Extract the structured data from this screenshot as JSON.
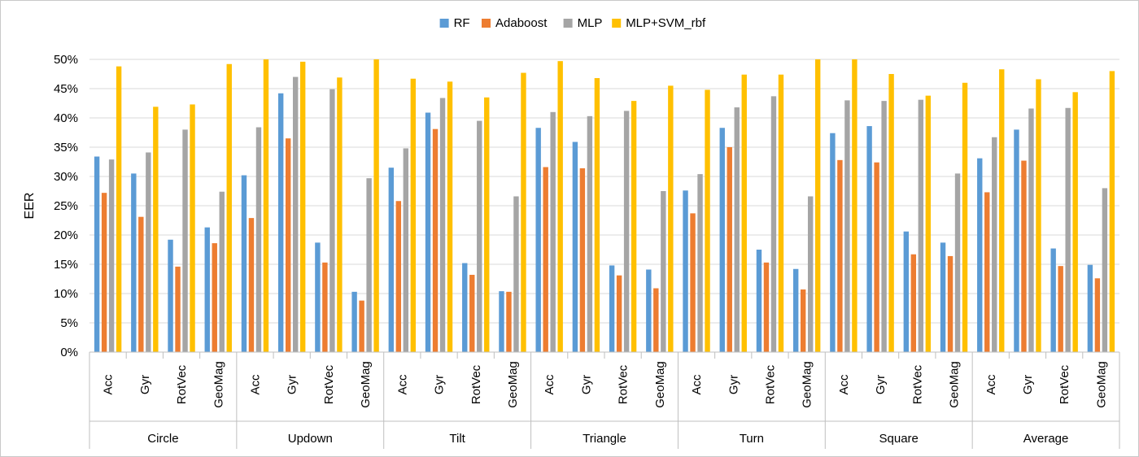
{
  "chart_data": {
    "type": "bar",
    "title": "",
    "ylabel": "EER",
    "xlabel": "",
    "ylim": [
      0,
      0.5
    ],
    "y_ticks": [
      "0%",
      "5%",
      "10%",
      "15%",
      "20%",
      "25%",
      "30%",
      "35%",
      "40%",
      "45%",
      "50%"
    ],
    "legend_position": "top-center",
    "grid": true,
    "groups": [
      "Circle",
      "Updown",
      "Tilt",
      "Triangle",
      "Turn",
      "Square",
      "Average"
    ],
    "categories": [
      "Acc",
      "Gyr",
      "RotVec",
      "GeoMag"
    ],
    "series": [
      {
        "name": "RF",
        "color": "#5b9bd5",
        "values": [
          [
            0.334,
            0.305,
            0.192,
            0.213
          ],
          [
            0.302,
            0.442,
            0.187,
            0.103
          ],
          [
            0.315,
            0.409,
            0.152,
            0.104
          ],
          [
            0.383,
            0.359,
            0.148,
            0.141
          ],
          [
            0.276,
            0.383,
            0.175,
            0.142
          ],
          [
            0.374,
            0.386,
            0.206,
            0.187
          ],
          [
            0.331,
            0.38,
            0.177,
            0.149
          ]
        ]
      },
      {
        "name": "Adaboost",
        "color": "#ed7d31",
        "values": [
          [
            0.272,
            0.231,
            0.146,
            0.186
          ],
          [
            0.229,
            0.365,
            0.153,
            0.088
          ],
          [
            0.258,
            0.381,
            0.132,
            0.103
          ],
          [
            0.316,
            0.314,
            0.131,
            0.109
          ],
          [
            0.237,
            0.35,
            0.153,
            0.107
          ],
          [
            0.328,
            0.324,
            0.167,
            0.164
          ],
          [
            0.273,
            0.327,
            0.147,
            0.126
          ]
        ]
      },
      {
        "name": "MLP",
        "color": "#a5a5a5",
        "values": [
          [
            0.329,
            0.341,
            0.38,
            0.274
          ],
          [
            0.384,
            0.47,
            0.449,
            0.297
          ],
          [
            0.348,
            0.434,
            0.395,
            0.266
          ],
          [
            0.41,
            0.403,
            0.412,
            0.275
          ],
          [
            0.304,
            0.418,
            0.437,
            0.266
          ],
          [
            0.43,
            0.429,
            0.431,
            0.305
          ],
          [
            0.367,
            0.416,
            0.417,
            0.28
          ]
        ]
      },
      {
        "name": "MLP+SVM_rbf",
        "color": "#ffc000",
        "values": [
          [
            0.488,
            0.419,
            0.423,
            0.492
          ],
          [
            0.5,
            0.496,
            0.469,
            0.5
          ],
          [
            0.467,
            0.462,
            0.435,
            0.477
          ],
          [
            0.497,
            0.468,
            0.429,
            0.455
          ],
          [
            0.448,
            0.474,
            0.474,
            0.5
          ],
          [
            0.5,
            0.475,
            0.438,
            0.46
          ],
          [
            0.483,
            0.466,
            0.444,
            0.48
          ]
        ]
      }
    ]
  }
}
